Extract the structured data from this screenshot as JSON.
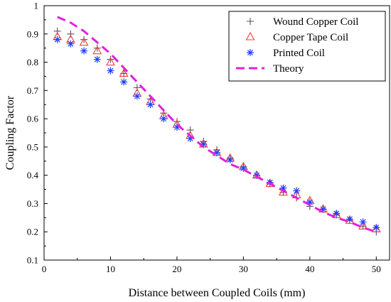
{
  "chart_data": {
    "type": "scatter",
    "title": "",
    "xlabel": "Distance between Coupled Coils (mm)",
    "ylabel": "Coupling Factor",
    "xlim": [
      0,
      52
    ],
    "ylim": [
      0.1,
      1.0
    ],
    "xticks": [
      0,
      10,
      20,
      30,
      40,
      50
    ],
    "yticks": [
      0.1,
      0.2,
      0.3,
      0.4,
      0.5,
      0.6,
      0.7,
      0.8,
      0.9,
      1.0
    ],
    "grid": false,
    "legend_position": "top-right",
    "series": [
      {
        "name": "Wound Copper Coil",
        "kind": "points",
        "marker": "plus",
        "color": "#555555",
        "x": [
          2,
          4,
          6,
          8,
          10,
          12,
          14,
          16,
          18,
          20,
          22,
          24,
          26,
          28,
          30,
          32,
          34,
          36,
          38,
          40,
          42,
          44,
          46,
          48,
          50
        ],
        "y": [
          0.91,
          0.9,
          0.88,
          0.85,
          0.81,
          0.76,
          0.71,
          0.67,
          0.62,
          0.59,
          0.56,
          0.52,
          0.49,
          0.46,
          0.43,
          0.4,
          0.37,
          0.34,
          0.32,
          0.29,
          0.28,
          0.26,
          0.24,
          0.22,
          0.2
        ]
      },
      {
        "name": "Copper Tape Coil",
        "kind": "points",
        "marker": "triangle",
        "color": "#ff3b3b",
        "x": [
          2,
          4,
          6,
          8,
          10,
          12,
          14,
          16,
          18,
          20,
          22,
          24,
          26,
          28,
          30,
          32,
          34,
          36,
          38,
          40,
          42,
          44,
          46,
          48,
          50
        ],
        "y": [
          0.89,
          0.88,
          0.87,
          0.84,
          0.8,
          0.76,
          0.69,
          0.66,
          0.61,
          0.58,
          0.54,
          0.51,
          0.48,
          0.46,
          0.43,
          0.4,
          0.37,
          0.34,
          0.33,
          0.31,
          0.28,
          0.26,
          0.24,
          0.22,
          0.21
        ]
      },
      {
        "name": "Printed Coil",
        "kind": "points",
        "marker": "asterisk",
        "color": "#1f3fff",
        "x": [
          2,
          4,
          6,
          8,
          10,
          12,
          14,
          16,
          18,
          20,
          22,
          24,
          26,
          28,
          30,
          32,
          34,
          36,
          38,
          40,
          42,
          44,
          46,
          48,
          50
        ],
        "y": [
          0.88,
          0.865,
          0.84,
          0.81,
          0.77,
          0.73,
          0.68,
          0.65,
          0.6,
          0.57,
          0.53,
          0.51,
          0.48,
          0.455,
          0.425,
          0.4,
          0.375,
          0.355,
          0.345,
          0.305,
          0.28,
          0.265,
          0.245,
          0.235,
          0.215
        ]
      },
      {
        "name": "Theory",
        "kind": "line",
        "dash": true,
        "color": "#e020e0",
        "x": [
          2,
          4,
          6,
          8,
          10,
          12,
          14,
          16,
          18,
          20,
          22,
          24,
          26,
          28,
          30,
          32,
          34,
          36,
          38,
          40,
          42,
          44,
          46,
          48,
          50
        ],
        "y": [
          0.96,
          0.94,
          0.91,
          0.87,
          0.83,
          0.78,
          0.73,
          0.68,
          0.63,
          0.58,
          0.54,
          0.5,
          0.47,
          0.44,
          0.42,
          0.395,
          0.37,
          0.345,
          0.32,
          0.295,
          0.27,
          0.25,
          0.235,
          0.215,
          0.2
        ]
      }
    ]
  }
}
